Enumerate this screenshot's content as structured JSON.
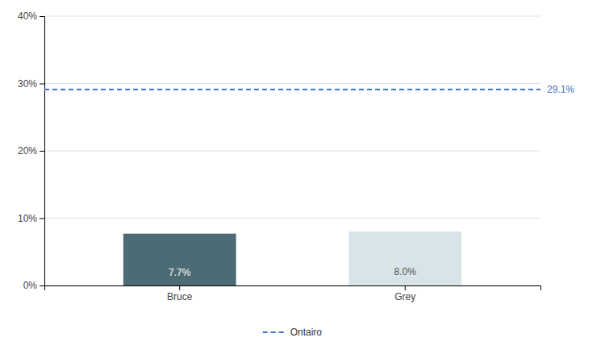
{
  "chart_data": {
    "type": "bar",
    "categories": [
      "Bruce",
      "Grey"
    ],
    "values": [
      7.7,
      8.0
    ],
    "value_labels": [
      "7.7%",
      "8.0%"
    ],
    "colors": [
      "#4d6b74",
      "#d8e4e8"
    ],
    "data_labels": true,
    "reference_lines": [
      {
        "name": "Ontairo",
        "value": 29.1,
        "label": "29.1%",
        "color": "#4472c4",
        "line_style": "dashed"
      }
    ],
    "ylim": [
      0,
      40
    ],
    "yticks": [
      {
        "value": 0,
        "label": "0%"
      },
      {
        "value": 10,
        "label": "10%"
      },
      {
        "value": 20,
        "label": "20%"
      },
      {
        "value": 30,
        "label": "30%"
      },
      {
        "value": 40,
        "label": "40%"
      }
    ],
    "grid": true,
    "legend": "bottom"
  }
}
